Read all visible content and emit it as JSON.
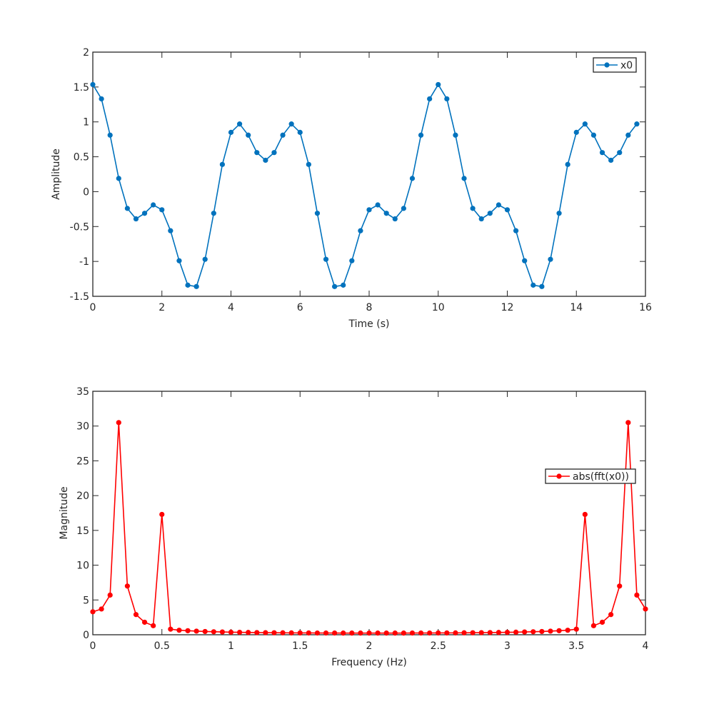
{
  "chart_data": [
    {
      "type": "line",
      "title": "",
      "xlabel": "Time (s)",
      "ylabel": "Amplitude",
      "xlim": [
        0,
        16
      ],
      "ylim": [
        -1.5,
        2
      ],
      "xticks": [
        0,
        2,
        4,
        6,
        8,
        10,
        12,
        14,
        16
      ],
      "yticks": [
        -1.5,
        -1,
        -0.5,
        0,
        0.5,
        1,
        1.5,
        2
      ],
      "xtick_labels": [
        "0",
        "2",
        "4",
        "6",
        "8",
        "10",
        "12",
        "14",
        "16"
      ],
      "ytick_labels": [
        "-1.5",
        "-1",
        "-0.5",
        "0",
        "0.5",
        "1",
        "1.5",
        "2"
      ],
      "legend_position": "top-right",
      "grid": false,
      "x_start": 0,
      "x_step": 0.25,
      "series": [
        {
          "name": "x0",
          "color": "#0072BD",
          "values": [
            1.535,
            1.33,
            0.81,
            0.19,
            -0.24,
            -0.39,
            -0.31,
            -0.19,
            -0.26,
            -0.56,
            -0.99,
            -1.34,
            -1.36,
            -0.97,
            -0.31,
            0.39,
            0.85,
            0.97,
            0.81,
            0.56,
            0.45,
            0.56,
            0.81,
            0.97,
            0.85,
            0.39,
            -0.31,
            -0.97,
            -1.36,
            -1.34,
            -0.99,
            -0.56,
            -0.26,
            -0.19,
            -0.31,
            -0.39,
            -0.24,
            0.19,
            0.81,
            1.33,
            1.535,
            1.33,
            0.81,
            0.19,
            -0.24,
            -0.39,
            -0.31,
            -0.19,
            -0.26,
            -0.56,
            -0.99,
            -1.34,
            -1.36,
            -0.97,
            -0.31,
            0.39,
            0.85,
            0.97,
            0.81,
            0.56,
            0.45,
            0.56,
            0.81,
            0.97
          ]
        }
      ]
    },
    {
      "type": "line",
      "title": "",
      "xlabel": "Frequency (Hz)",
      "ylabel": "Magnitude",
      "xlim": [
        0,
        4
      ],
      "ylim": [
        0,
        35
      ],
      "xticks": [
        0,
        0.5,
        1,
        1.5,
        2,
        2.5,
        3,
        3.5,
        4
      ],
      "yticks": [
        0,
        5,
        10,
        15,
        20,
        25,
        30,
        35
      ],
      "xtick_labels": [
        "0",
        "0.5",
        "1",
        "1.5",
        "2",
        "2.5",
        "3",
        "3.5",
        "4"
      ],
      "ytick_labels": [
        "0",
        "5",
        "10",
        "15",
        "20",
        "25",
        "30",
        "35"
      ],
      "legend_position": "right",
      "grid": false,
      "x_start": 0,
      "x_step": 0.0625,
      "series": [
        {
          "name": "abs(fft(x0))",
          "color": "#FF0000",
          "values": [
            3.3,
            3.7,
            5.7,
            30.5,
            7.0,
            2.9,
            1.8,
            1.3,
            17.3,
            0.8,
            0.65,
            0.58,
            0.52,
            0.47,
            0.43,
            0.4,
            0.37,
            0.35,
            0.33,
            0.31,
            0.3,
            0.29,
            0.28,
            0.27,
            0.26,
            0.26,
            0.25,
            0.25,
            0.25,
            0.24,
            0.24,
            0.24,
            0.24,
            0.24,
            0.24,
            0.24,
            0.24,
            0.25,
            0.25,
            0.25,
            0.26,
            0.26,
            0.27,
            0.28,
            0.29,
            0.3,
            0.31,
            0.33,
            0.35,
            0.37,
            0.4,
            0.43,
            0.47,
            0.52,
            0.58,
            0.65,
            0.8,
            17.3,
            1.3,
            1.8,
            2.9,
            7.0,
            30.5,
            5.7,
            3.7
          ]
        }
      ]
    }
  ]
}
